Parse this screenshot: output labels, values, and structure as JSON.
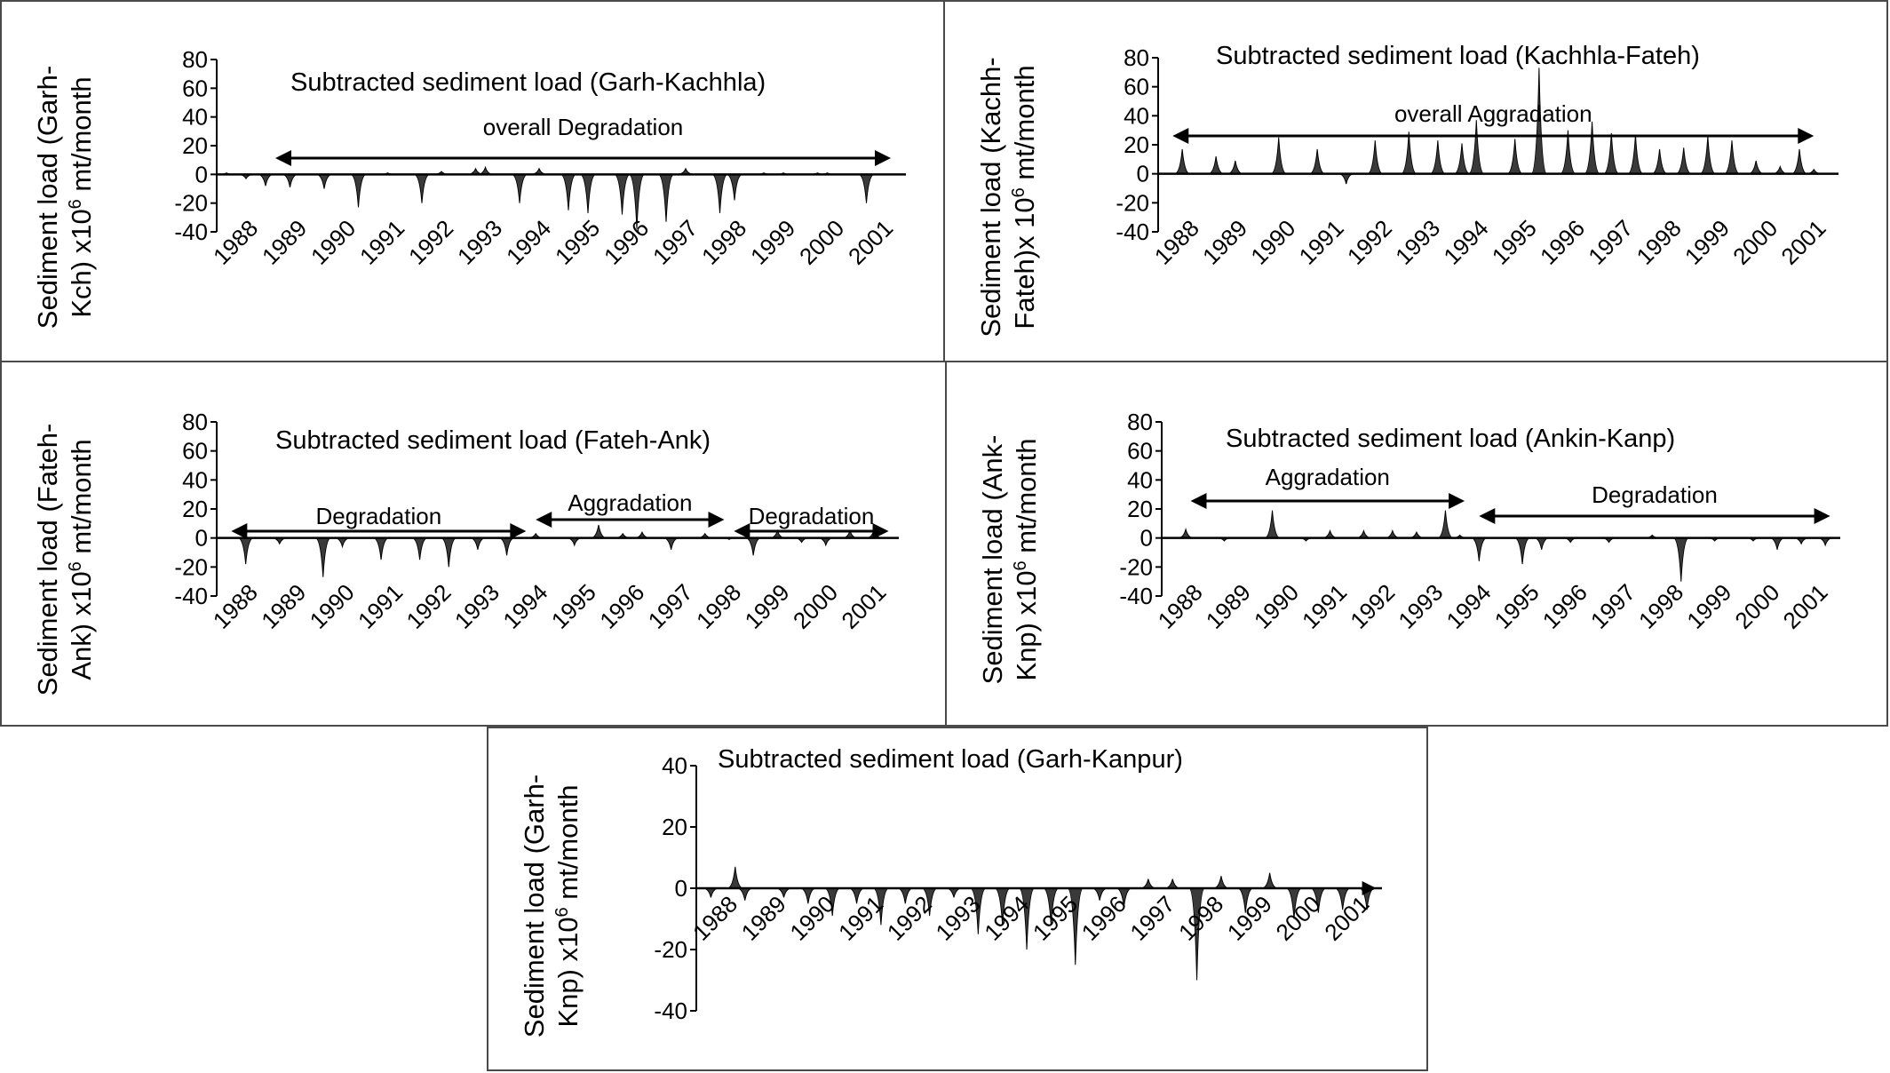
{
  "chart_data": [
    {
      "type": "area",
      "title": "Subtracted sediment load (Garh-Kachhla)",
      "ylabel": [
        "Sediment load (Garh-",
        "Kch) x10^6 mt/month"
      ],
      "ylim": [
        -40,
        80
      ],
      "yticks": [
        80,
        60,
        40,
        20,
        0,
        -20,
        -40
      ],
      "xlim": [
        1988,
        2002
      ],
      "categories": [
        "1988",
        "1989",
        "1990",
        "1991",
        "1992",
        "1993",
        "1994",
        "1995",
        "1996",
        "1997",
        "1998",
        "1999",
        "2000",
        "2001"
      ],
      "annotations": [
        {
          "text": "overall Degradation",
          "arrow_from": 1989.2,
          "arrow_to": 2001.8
        }
      ],
      "series": [
        {
          "x": [
            1988.2,
            1988.6,
            1989.0,
            1989.5,
            1990.2,
            1990.9,
            1991.5,
            1992.2,
            1992.6,
            1993.3,
            1993.5,
            1994.2,
            1994.6,
            1995.2,
            1995.6,
            1996.3,
            1996.6,
            1997.2,
            1997.6,
            1998.3,
            1998.6,
            1999.2,
            1999.6,
            2000.3,
            2000.5,
            2001.3
          ],
          "y": [
            1,
            -3,
            -8,
            -9,
            -10,
            -23,
            1,
            -20,
            2,
            4,
            5,
            -20,
            4,
            -25,
            -27,
            -28,
            -38,
            -33,
            4,
            -27,
            -18,
            1,
            1,
            1,
            1,
            -20
          ]
        }
      ]
    },
    {
      "type": "area",
      "title": "Subtracted sediment load (Kachhla-Fateh)",
      "ylabel": [
        "Sediment load (Kachh-",
        "Fateh)x 10^6 mt/month"
      ],
      "ylim": [
        -40,
        80
      ],
      "yticks": [
        80,
        60,
        40,
        20,
        0,
        -20,
        -40
      ],
      "xlim": [
        1988,
        2002
      ],
      "categories": [
        "1988",
        "1989",
        "1990",
        "1991",
        "1992",
        "1993",
        "1994",
        "1995",
        "1996",
        "1997",
        "1998",
        "1999",
        "2000",
        "2001"
      ],
      "annotations": [
        {
          "text": "overall Aggradation",
          "arrow_from": 1988.3,
          "arrow_to": 2001.6
        }
      ],
      "series": [
        {
          "x": [
            1988.5,
            1989.2,
            1989.6,
            1990.5,
            1991.3,
            1991.9,
            1992.5,
            1993.2,
            1993.8,
            1994.3,
            1994.6,
            1995.4,
            1995.9,
            1996.5,
            1997.0,
            1997.4,
            1997.9,
            1998.4,
            1998.9,
            1999.4,
            1999.9,
            2000.4,
            2000.9,
            2001.3,
            2001.6
          ],
          "y": [
            17,
            12,
            9,
            25,
            17,
            -7,
            23,
            29,
            23,
            21,
            37,
            24,
            73,
            30,
            36,
            28,
            27,
            17,
            18,
            26,
            23,
            9,
            5,
            17,
            3
          ]
        }
      ]
    },
    {
      "type": "area",
      "title": "Subtracted sediment load (Fateh-Ank)",
      "ylabel": [
        "Sediment load (Fateh-",
        "Ank) x10^6 mt/month"
      ],
      "ylim": [
        -40,
        80
      ],
      "yticks": [
        80,
        60,
        40,
        20,
        0,
        -20,
        -40
      ],
      "xlim": [
        1988,
        2002
      ],
      "categories": [
        "1988",
        "1989",
        "1990",
        "1991",
        "1992",
        "1993",
        "1994",
        "1995",
        "1996",
        "1997",
        "1998",
        "1999",
        "2000",
        "2001"
      ],
      "annotations": [
        {
          "text": "Degradation",
          "arrow_from": 1988.3,
          "arrow_to": 1994.4
        },
        {
          "text": "Aggradation",
          "arrow_from": 1994.6,
          "arrow_to": 1998.5
        },
        {
          "text": "Degradation",
          "arrow_from": 1998.7,
          "arrow_to": 2001.9
        }
      ],
      "series": [
        {
          "x": [
            1988.6,
            1989.3,
            1990.2,
            1990.6,
            1991.4,
            1992.2,
            1992.8,
            1993.4,
            1994.0,
            1994.6,
            1995.4,
            1995.9,
            1996.4,
            1996.8,
            1997.4,
            1998.1,
            1998.6,
            1999.1,
            1999.6,
            2000.1,
            2000.6,
            2001.1,
            2001.6
          ],
          "y": [
            -18,
            -4,
            -27,
            -6,
            -15,
            -15,
            -20,
            -8,
            -12,
            3,
            -5,
            9,
            3,
            4,
            -8,
            3,
            -1,
            -12,
            5,
            -3,
            -5,
            5,
            6
          ]
        }
      ]
    },
    {
      "type": "area",
      "title": "Subtracted sediment load (Ankin-Kanp)",
      "ylabel": [
        "Sediment load (Ank-",
        "Knp) x10^6 mt/month"
      ],
      "ylim": [
        -40,
        80
      ],
      "yticks": [
        80,
        60,
        40,
        20,
        0,
        -20,
        -40
      ],
      "xlim": [
        1988,
        2002
      ],
      "categories": [
        "1988",
        "1989",
        "1990",
        "1991",
        "1992",
        "1993",
        "1994",
        "1995",
        "1996",
        "1997",
        "1998",
        "1999",
        "2000",
        "2001"
      ],
      "annotations": [
        {
          "text": "Aggradation",
          "arrow_from": 1988.6,
          "arrow_to": 1994.3
        },
        {
          "text": "Degradation",
          "arrow_from": 1994.6,
          "arrow_to": 2001.9
        }
      ],
      "series": [
        {
          "x": [
            1988.5,
            1989.3,
            1990.3,
            1991.0,
            1991.5,
            1992.2,
            1992.8,
            1993.3,
            1993.9,
            1994.2,
            1994.6,
            1995.5,
            1995.9,
            1996.5,
            1997.3,
            1998.2,
            1998.8,
            1999.5,
            2000.3,
            2000.8,
            2001.3,
            2001.8
          ],
          "y": [
            6,
            -2,
            19,
            -2,
            5,
            5,
            5,
            4,
            19,
            2,
            -16,
            -18,
            -8,
            -3,
            -3,
            2,
            -30,
            -2,
            -2,
            -8,
            -4,
            -5
          ]
        }
      ]
    },
    {
      "type": "area",
      "title": "Subtracted sediment load (Garh-Kanpur)",
      "ylabel": [
        "Sediment load (Garh-",
        "Knp) x10^6 mt/month"
      ],
      "ylim": [
        -40,
        40
      ],
      "yticks": [
        40,
        20,
        0,
        -20,
        -40
      ],
      "xlim": [
        1988,
        2002
      ],
      "categories": [
        "1988",
        "1989",
        "1990",
        "1991",
        "1992",
        "1993",
        "1994",
        "1995",
        "1996",
        "1997",
        "1998",
        "1999",
        "2000",
        "2001"
      ],
      "annotations": [
        {
          "text": "",
          "arrow_from": 1988.1,
          "arrow_to": 2001.7
        }
      ],
      "series": [
        {
          "x": [
            1988.3,
            1988.8,
            1989.0,
            1989.8,
            1990.3,
            1990.8,
            1991.3,
            1991.8,
            1992.3,
            1992.8,
            1993.3,
            1993.8,
            1994.3,
            1994.8,
            1995.3,
            1995.8,
            1996.3,
            1996.8,
            1997.3,
            1997.8,
            1998.3,
            1998.8,
            1999.3,
            1999.8,
            2000.3,
            2000.8,
            2001.3,
            2001.8
          ],
          "y": [
            -3,
            7,
            -4,
            -3,
            -5,
            -9,
            -5,
            -12,
            -5,
            -9,
            -3,
            -15,
            -12,
            -20,
            -12,
            -25,
            -4,
            -6,
            3,
            3,
            -30,
            4,
            -8,
            5,
            -10,
            -8,
            -7,
            -7
          ]
        }
      ]
    }
  ]
}
